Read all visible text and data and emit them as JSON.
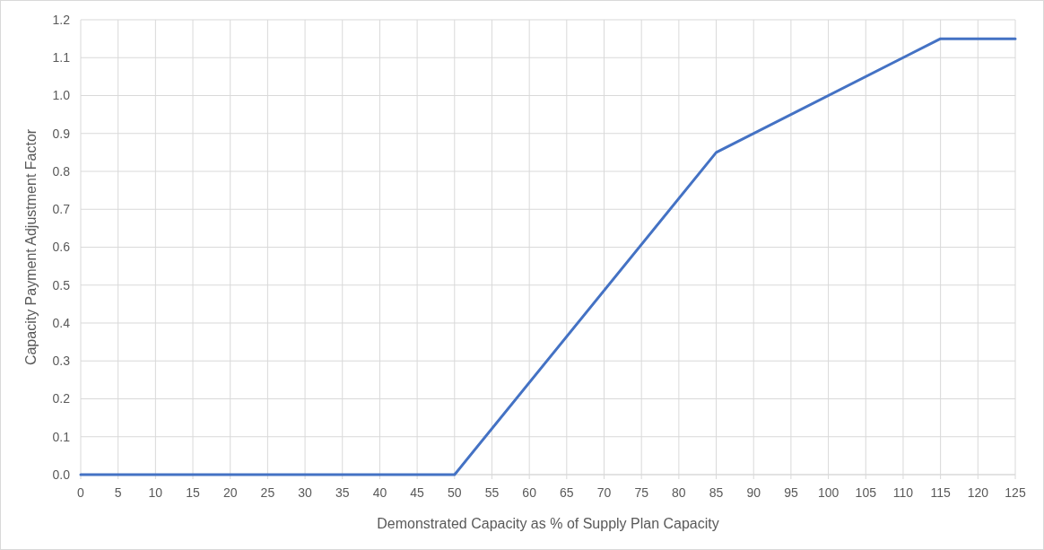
{
  "chart_data": {
    "type": "line",
    "xlabel": "Demonstrated Capacity as % of Supply Plan Capacity",
    "ylabel": "Capacity Payment Adjustment Factor",
    "x": [
      0,
      50,
      85,
      115,
      125
    ],
    "series": [
      {
        "color": "#4472c4",
        "values": [
          0,
          0,
          0.85,
          1.15,
          1.15
        ]
      }
    ],
    "xlim": [
      0,
      125
    ],
    "xticks": [
      0,
      5,
      10,
      15,
      20,
      25,
      30,
      35,
      40,
      45,
      50,
      55,
      60,
      65,
      70,
      75,
      80,
      85,
      90,
      95,
      100,
      105,
      110,
      115,
      120,
      125
    ],
    "ylim": [
      0,
      1.2
    ],
    "yticks": [
      {
        "value": 0,
        "label": "0.0"
      },
      {
        "value": 0.1,
        "label": "0.1"
      },
      {
        "value": 0.2,
        "label": "0.2"
      },
      {
        "value": 0.3,
        "label": "0.3"
      },
      {
        "value": 0.4,
        "label": "0.4"
      },
      {
        "value": 0.5,
        "label": "0.5"
      },
      {
        "value": 0.6,
        "label": "0.6"
      },
      {
        "value": 0.7,
        "label": "0.7"
      },
      {
        "value": 0.8,
        "label": "0.8"
      },
      {
        "value": 0.9,
        "label": "0.9"
      },
      {
        "value": 1,
        "label": "1.0"
      },
      {
        "value": 1.1,
        "label": "1.1"
      },
      {
        "value": 1.2,
        "label": "1.2"
      }
    ],
    "grid": true
  }
}
